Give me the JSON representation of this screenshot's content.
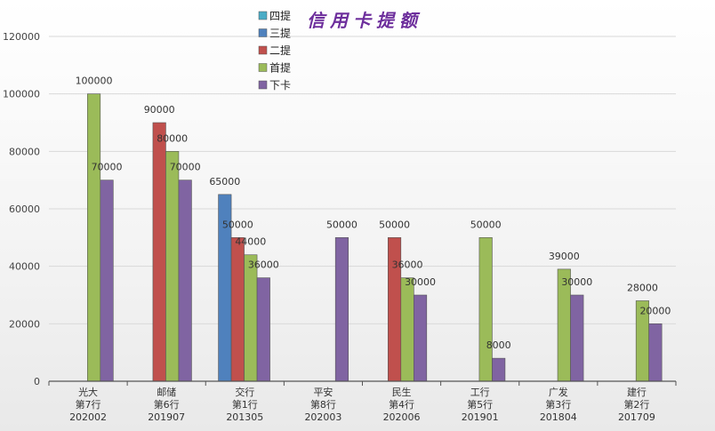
{
  "chart_data": {
    "type": "bar",
    "title": "信用卡提额",
    "categories": [
      [
        "光大",
        "第7行",
        "202002"
      ],
      [
        "邮储",
        "第6行",
        "201907"
      ],
      [
        "交行",
        "第1行",
        "201305"
      ],
      [
        "平安",
        "第8行",
        "202003"
      ],
      [
        "民生",
        "第4行",
        "202006"
      ],
      [
        "工行",
        "第5行",
        "201901"
      ],
      [
        "广发",
        "第3行",
        "201804"
      ],
      [
        "建行",
        "第2行",
        "201709"
      ]
    ],
    "series": [
      {
        "name": "四提",
        "color": "#4bacc6",
        "values": [
          null,
          null,
          null,
          null,
          null,
          null,
          null,
          null
        ]
      },
      {
        "name": "三提",
        "color": "#4f81bd",
        "values": [
          null,
          null,
          65000,
          null,
          null,
          null,
          null,
          null
        ]
      },
      {
        "name": "二提",
        "color": "#c0504d",
        "values": [
          null,
          90000,
          50000,
          null,
          50000,
          null,
          null,
          null
        ]
      },
      {
        "name": "首提",
        "color": "#9bbb59",
        "values": [
          100000,
          80000,
          44000,
          null,
          36000,
          50000,
          39000,
          28000
        ]
      },
      {
        "name": "下卡",
        "color": "#8064a2",
        "values": [
          70000,
          70000,
          36000,
          50000,
          30000,
          8000,
          30000,
          20000
        ]
      }
    ],
    "yticks": [
      0,
      20000,
      40000,
      60000,
      80000,
      100000,
      120000
    ],
    "ylim": [
      0,
      120000
    ],
    "grid": true,
    "legend_position": "top-center"
  }
}
